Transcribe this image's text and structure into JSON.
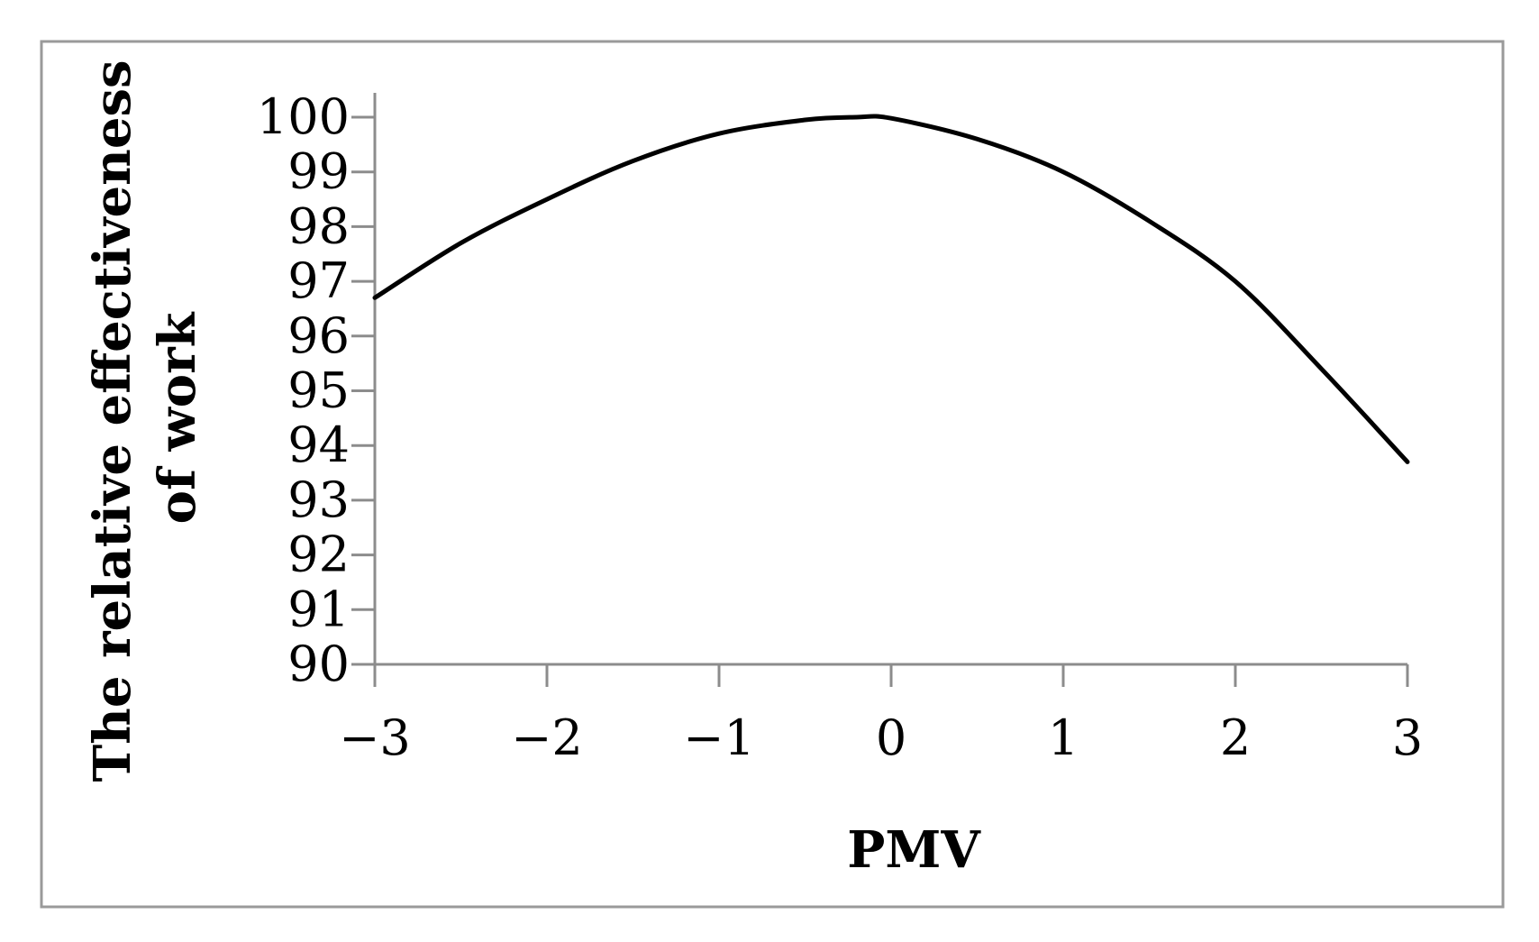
{
  "chart_data": {
    "type": "line",
    "title": "",
    "xlabel": "PMV",
    "ylabel_lines": [
      "The relative effectiveness",
      "of work"
    ],
    "xlim": [
      -3,
      3
    ],
    "ylim": [
      90,
      100
    ],
    "x_ticks": [
      -3,
      -2,
      -1,
      0,
      1,
      2,
      3
    ],
    "x_tick_labels": [
      "−3",
      "−2",
      "−1",
      "0",
      "1",
      "2",
      "3"
    ],
    "y_ticks": [
      90,
      91,
      92,
      93,
      94,
      95,
      96,
      97,
      98,
      99,
      100
    ],
    "y_tick_labels": [
      "90",
      "91",
      "92",
      "93",
      "94",
      "95",
      "96",
      "97",
      "98",
      "99",
      "100"
    ],
    "grid": false,
    "legend": "none",
    "series": [
      {
        "color": "#000000",
        "x": [
          -3.0,
          -2.5,
          -2.0,
          -1.5,
          -1.0,
          -0.5,
          -0.2,
          0.0,
          0.5,
          1.0,
          1.5,
          2.0,
          2.5,
          3.0
        ],
        "y": [
          96.7,
          97.7,
          98.5,
          99.2,
          99.7,
          99.95,
          100.0,
          99.98,
          99.6,
          99.0,
          98.1,
          97.0,
          95.4,
          93.7
        ]
      }
    ],
    "axis_color": "#8c8c8c",
    "frame_color": "#9a9a9a"
  }
}
